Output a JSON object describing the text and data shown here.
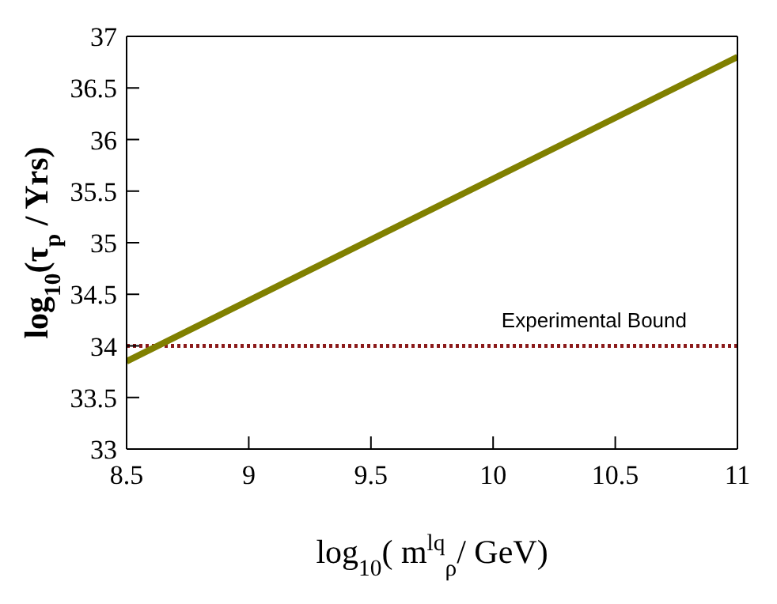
{
  "chart_data": {
    "type": "line",
    "xlabel": "log$_{10}$( m$^{lq}$$_{ρ}$/ GeV)",
    "ylabel": "log$_{10}$(τ$_{p}$ / Yrs)",
    "x": [
      8.5,
      11
    ],
    "series": [
      {
        "color": "#808000",
        "values": [
          33.85,
          36.8
        ]
      }
    ],
    "xlim": [
      8.5,
      11
    ],
    "xticks": [
      8.5,
      9,
      9.5,
      10,
      10.5,
      11
    ],
    "ylim": [
      33,
      37
    ],
    "yticks": [
      33,
      33.5,
      34,
      34.5,
      35,
      35.5,
      36,
      36.5,
      37
    ],
    "ref_lines": [
      {
        "axis": "y",
        "value": 34,
        "label": "Experimental Bound",
        "color": "#8b1a1a",
        "line_style": "dotted"
      }
    ],
    "marker": "none",
    "line_style": "solid"
  }
}
